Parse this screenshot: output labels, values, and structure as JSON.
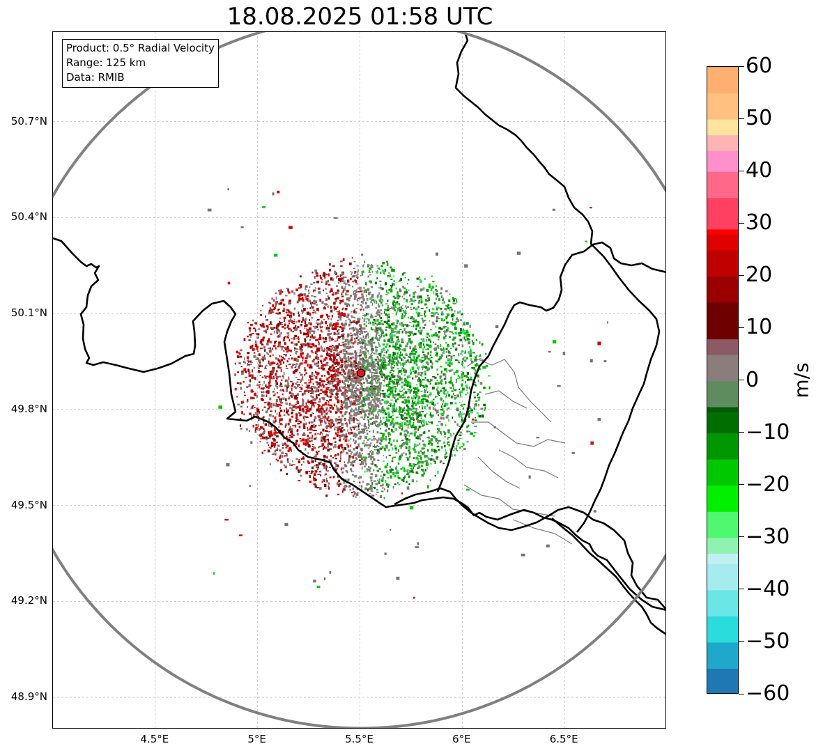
{
  "title": "18.08.2025 01:58 UTC",
  "info_box": {
    "product": "Product: 0.5° Radial Velocity",
    "range": "Range: 125 km",
    "data": "Data: RMIB"
  },
  "map": {
    "lon_range": [
      4.0,
      7.0
    ],
    "lat_range": [
      48.8,
      50.98
    ],
    "lat_ticks": [
      {
        "value": 48.9,
        "label": "48.9°N"
      },
      {
        "value": 49.2,
        "label": "49.2°N"
      },
      {
        "value": 49.5,
        "label": "49.5°N"
      },
      {
        "value": 49.8,
        "label": "49.8°N"
      },
      {
        "value": 50.1,
        "label": "50.1°N"
      },
      {
        "value": 50.4,
        "label": "50.4°N"
      },
      {
        "value": 50.7,
        "label": "50.7°N"
      }
    ],
    "lon_ticks": [
      {
        "value": 4.5,
        "label": "4.5°E"
      },
      {
        "value": 5.0,
        "label": "5°E"
      },
      {
        "value": 5.5,
        "label": "5.5°E"
      },
      {
        "value": 6.0,
        "label": "6°E"
      },
      {
        "value": 6.5,
        "label": "6.5°E"
      }
    ],
    "radar_site": {
      "lon": 5.505,
      "lat": 49.914
    },
    "range_ring_color": "#808080",
    "grid_color": "#b0b0b0"
  },
  "colorbar": {
    "unit": "m/s",
    "min": -60,
    "max": 60,
    "ticks": [
      {
        "value": 60,
        "label": "60"
      },
      {
        "value": 50,
        "label": "50"
      },
      {
        "value": 40,
        "label": "40"
      },
      {
        "value": 30,
        "label": "30"
      },
      {
        "value": 20,
        "label": "20"
      },
      {
        "value": 10,
        "label": "10"
      },
      {
        "value": 0,
        "label": "0"
      },
      {
        "value": -10,
        "label": "−10"
      },
      {
        "value": -20,
        "label": "−20"
      },
      {
        "value": -30,
        "label": "−30"
      },
      {
        "value": -40,
        "label": "−40"
      },
      {
        "value": -50,
        "label": "−50"
      },
      {
        "value": -60,
        "label": "−60"
      }
    ],
    "color_stops": [
      {
        "value": -60,
        "color": "#1f77b4"
      },
      {
        "value": -55,
        "color": "#20a8cc"
      },
      {
        "value": -50,
        "color": "#2adcdc"
      },
      {
        "value": -45,
        "color": "#6ae6e6"
      },
      {
        "value": -40,
        "color": "#a6ecee"
      },
      {
        "value": -35,
        "color": "#c0f0f0"
      },
      {
        "value": -33,
        "color": "#90f2b0"
      },
      {
        "value": -30,
        "color": "#50f870"
      },
      {
        "value": -25,
        "color": "#00f000"
      },
      {
        "value": -20,
        "color": "#00c800"
      },
      {
        "value": -15,
        "color": "#009600"
      },
      {
        "value": -10,
        "color": "#006e00"
      },
      {
        "value": -6,
        "color": "#005a00"
      },
      {
        "value": -5,
        "color": "#5f8c5f"
      },
      {
        "value": 0,
        "color": "#8c7d7d"
      },
      {
        "value": 5,
        "color": "#8c5a64"
      },
      {
        "value": 8,
        "color": "#6e0000"
      },
      {
        "value": 15,
        "color": "#9a0000"
      },
      {
        "value": 20,
        "color": "#c00000"
      },
      {
        "value": 25,
        "color": "#e00000"
      },
      {
        "value": 28,
        "color": "#ff0000"
      },
      {
        "value": 29,
        "color": "#ff4060"
      },
      {
        "value": 35,
        "color": "#ff6888"
      },
      {
        "value": 40,
        "color": "#ff90cc"
      },
      {
        "value": 44,
        "color": "#ffb4b4"
      },
      {
        "value": 47,
        "color": "#ffe4a0"
      },
      {
        "value": 50,
        "color": "#ffc080"
      },
      {
        "value": 55,
        "color": "#ffb070"
      },
      {
        "value": 60,
        "color": "#ff9a50"
      }
    ]
  }
}
